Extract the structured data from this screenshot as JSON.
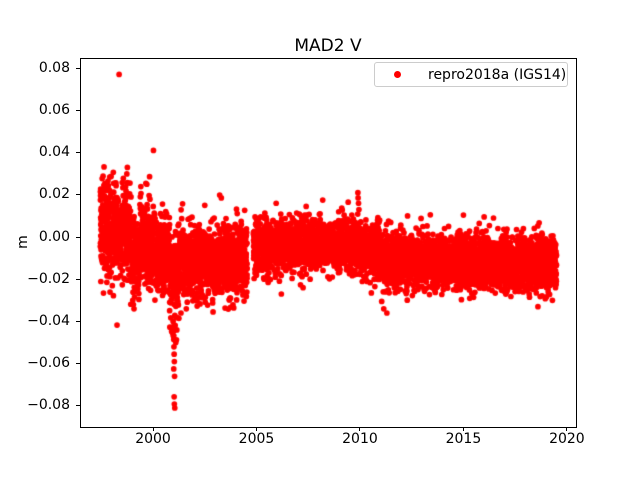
{
  "figure": {
    "title": "MAD2 V",
    "background_color": "#ffffff",
    "axes_color": "#000000"
  },
  "legend": {
    "label": "repro2018a (IGS14)",
    "marker_color": "#ff0000",
    "border_color": "#cccccc",
    "position": "upper right"
  },
  "chart_data": {
    "type": "scatter",
    "title": "MAD2 V",
    "xlabel": "",
    "ylabel": "m",
    "series_name": "repro2018a (IGS14)",
    "marker": "dot",
    "color": "#ff0000",
    "grid": false,
    "xlim": [
      1996.47,
      2020.44
    ],
    "ylim": [
      -0.09,
      0.0848
    ],
    "xticks": [
      2000,
      2005,
      2010,
      2015,
      2020
    ],
    "xtick_labels": [
      "2000",
      "2005",
      "2010",
      "2015",
      "2020"
    ],
    "yticks": [
      -0.08,
      -0.06,
      -0.04,
      -0.02,
      0.0,
      0.02,
      0.04,
      0.06,
      0.08
    ],
    "ytick_labels": [
      "−0.08",
      "−0.06",
      "−0.04",
      "−0.02",
      "0.00",
      "0.02",
      "0.04",
      "0.06",
      "0.08"
    ],
    "x_range_of_data": [
      1997.45,
      2019.5
    ],
    "description": "Daily vertical (V) position residuals band: wide noisy band near +0.005 m in 1997-1999, downward excursion to -0.081 m near 2001.0, band near -0.011 m 2001-2004.5, gap mid-2004, tighter band near -0.004 m 2005-2010, step down to about -0.012 m 2011-2019.5",
    "segments": [
      {
        "x0": 1997.45,
        "x1": 1997.98,
        "c0": 0.006,
        "c1": 0.003,
        "sd": 0.012,
        "lo": -0.03,
        "hi": 0.0335,
        "per_year": 340
      },
      {
        "x0": 1998.03,
        "x1": 1998.33,
        "c0": 0.004,
        "c1": 0.004,
        "sd": 0.0125,
        "lo": -0.031,
        "hi": 0.0335,
        "per_year": 340
      },
      {
        "x0": 1998.4,
        "x1": 1998.95,
        "c0": 0.003,
        "c1": 0.0,
        "sd": 0.012,
        "lo": -0.032,
        "hi": 0.0335,
        "per_year": 340
      },
      {
        "x0": 1998.95,
        "x1": 1999.35,
        "c0": -0.009,
        "c1": -0.011,
        "sd": 0.009,
        "lo": -0.03,
        "hi": 0.01,
        "per_year": 320
      },
      {
        "x0": 1999.35,
        "x1": 1999.85,
        "c0": -0.001,
        "c1": -0.001,
        "sd": 0.012,
        "lo": -0.026,
        "hi": 0.031,
        "per_year": 320
      },
      {
        "x0": 1999.85,
        "x1": 2000.8,
        "c0": -0.007,
        "c1": -0.009,
        "sd": 0.009,
        "lo": -0.0305,
        "hi": 0.024,
        "per_year": 330
      },
      {
        "x0": 2000.8,
        "x1": 2001.2,
        "c0": -0.016,
        "c1": -0.018,
        "sd": 0.011,
        "lo": -0.058,
        "hi": 0.003,
        "per_year": 330
      },
      {
        "x0": 2001.2,
        "x1": 2004.55,
        "c0": -0.013,
        "c1": -0.01,
        "sd": 0.0085,
        "lo": -0.036,
        "hi": 0.0205,
        "per_year": 330
      },
      {
        "x0": 2004.85,
        "x1": 2009.88,
        "c0": -0.004,
        "c1": -0.003,
        "sd": 0.006,
        "lo": -0.0235,
        "hi": 0.014,
        "per_year": 350
      },
      {
        "x0": 2009.88,
        "x1": 2010.96,
        "c0": -0.005,
        "c1": -0.006,
        "sd": 0.0065,
        "lo": -0.027,
        "hi": 0.015,
        "per_year": 350
      },
      {
        "x0": 2010.96,
        "x1": 2019.5,
        "c0": -0.011,
        "c1": -0.013,
        "sd": 0.0062,
        "lo": -0.03,
        "hi": 0.0105,
        "per_year": 350
      }
    ],
    "outliers": [
      [
        1998.36,
        0.077
      ],
      [
        2000.02,
        0.041
      ],
      [
        1998.26,
        -0.0417
      ],
      [
        1999.02,
        -0.03
      ],
      [
        1999.05,
        -0.032
      ],
      [
        1999.08,
        -0.034
      ],
      [
        2000.97,
        -0.04
      ],
      [
        2000.99,
        -0.0445
      ],
      [
        2001.0,
        -0.0485
      ],
      [
        2001.01,
        -0.052
      ],
      [
        2001.02,
        -0.0555
      ],
      [
        2001.03,
        -0.059
      ],
      [
        2001.0,
        -0.0625
      ],
      [
        2001.04,
        -0.066
      ],
      [
        2001.02,
        -0.0757
      ],
      [
        2001.03,
        -0.0791
      ],
      [
        2001.05,
        -0.081
      ],
      [
        2001.1,
        -0.05
      ],
      [
        2001.15,
        -0.044
      ],
      [
        2001.25,
        -0.0385
      ],
      [
        2001.35,
        -0.036
      ],
      [
        2002.9,
        -0.0355
      ],
      [
        2003.9,
        -0.0336
      ],
      [
        2002.5,
        0.015
      ],
      [
        2003.22,
        0.0199
      ],
      [
        2003.3,
        0.0185
      ],
      [
        2005.95,
        0.016
      ],
      [
        2007.4,
        0.0145
      ],
      [
        2008.2,
        0.0175
      ],
      [
        2006.2,
        -0.027
      ],
      [
        2007.25,
        -0.024
      ],
      [
        2009.43,
        0.0165
      ],
      [
        2009.9,
        0.021
      ],
      [
        2009.91,
        0.0185
      ],
      [
        2009.93,
        0.016
      ],
      [
        2009.95,
        0.013
      ],
      [
        2010.55,
        -0.0265
      ],
      [
        2011.05,
        -0.0305
      ],
      [
        2011.15,
        -0.034
      ],
      [
        2011.3,
        -0.036
      ],
      [
        2012.3,
        0.01
      ],
      [
        2013.4,
        0.0105
      ],
      [
        2015.0,
        0.0104
      ],
      [
        2016.0,
        0.0095
      ],
      [
        2018.6,
        -0.033
      ],
      [
        2019.3,
        -0.03
      ]
    ]
  }
}
